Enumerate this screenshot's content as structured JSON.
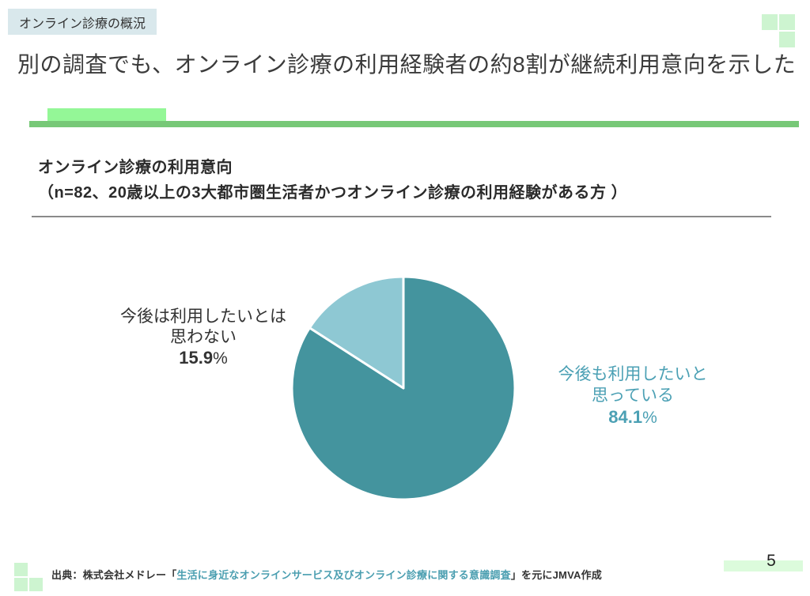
{
  "slide": {
    "topic_badge": "オンライン診療の概況",
    "title": "別の調査でも、オンライン診療の利用経験者の約8割が継続利用意向を示した",
    "page_number": "5"
  },
  "section": {
    "heading_line1": "オンライン診療の利用意向",
    "heading_line2": "（n=82、20歳以上の3大都市圏生活者かつオンライン診療の利用経験がある方 ）"
  },
  "chart_data": {
    "type": "pie",
    "title": "オンライン診療の利用意向",
    "sample_note": "n=82、20歳以上の3大都市圏生活者かつオンライン診療の利用経験がある方",
    "start_angle_deg": 0,
    "direction": "clockwise",
    "legend_position": "none",
    "slices": [
      {
        "label": "今後も利用したいと思っている",
        "value": 84.1,
        "color": "#44949e"
      },
      {
        "label": "今後は利用したいとは思わない",
        "value": 15.9,
        "color": "#8ec8d3"
      }
    ]
  },
  "callouts": {
    "negative": {
      "line1": "今後は利用したいとは",
      "line2": "思わない",
      "value": "15.9",
      "pct": "%"
    },
    "positive": {
      "line1": "今後も利用したいと",
      "line2": "思っている",
      "value": "84.1",
      "pct": "%"
    }
  },
  "footer": {
    "source_prefix": "出典：株式会社メドレー「",
    "source_link": "生活に身近なオンラインサービス及びオンライン診療に関する意識調査",
    "source_suffix": "」を元にJMVA作成"
  },
  "colors": {
    "badge_bg": "#d9e8ec",
    "accent_light_green": "#94f797",
    "accent_green_bar": "#77c877",
    "corner_square_green": "#cdf4d0",
    "page_bar_green": "#dcfbdc",
    "pie_positive": "#44949e",
    "pie_negative": "#8ec8d3",
    "positive_label_text": "#4ba0b4",
    "link_text": "#4a9eb0"
  }
}
